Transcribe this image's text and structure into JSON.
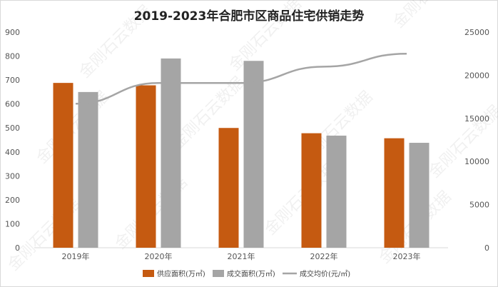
{
  "chart_data": {
    "type": "bar",
    "title": "2019-2023年合肥市区商品住宅供销走势",
    "categories": [
      "2019年",
      "2020年",
      "2021年",
      "2022年",
      "2023年"
    ],
    "series": [
      {
        "name": "供应面积(万㎡)",
        "kind": "bar",
        "axis": "left",
        "color": "#c55a11",
        "values": [
          688,
          678,
          500,
          478,
          457
        ]
      },
      {
        "name": "成交面积(万㎡)",
        "kind": "bar",
        "axis": "left",
        "color": "#a5a5a5",
        "values": [
          650,
          790,
          780,
          468,
          438
        ]
      },
      {
        "name": "成交均价(元/㎡)",
        "kind": "line",
        "axis": "right",
        "color": "#a5a5a5",
        "values": [
          16700,
          19100,
          19100,
          21000,
          22500
        ]
      }
    ],
    "left_axis": {
      "min": 0,
      "max": 900,
      "ticks": [
        "0",
        "100",
        "200",
        "300",
        "400",
        "500",
        "600",
        "700",
        "800",
        "900"
      ]
    },
    "right_axis": {
      "min": 0,
      "max": 25000,
      "ticks": [
        "0",
        "5000",
        "10000",
        "15000",
        "20000",
        "25000"
      ]
    },
    "legend_position": "bottom",
    "grid": false
  },
  "watermark": "金刚石云数据"
}
